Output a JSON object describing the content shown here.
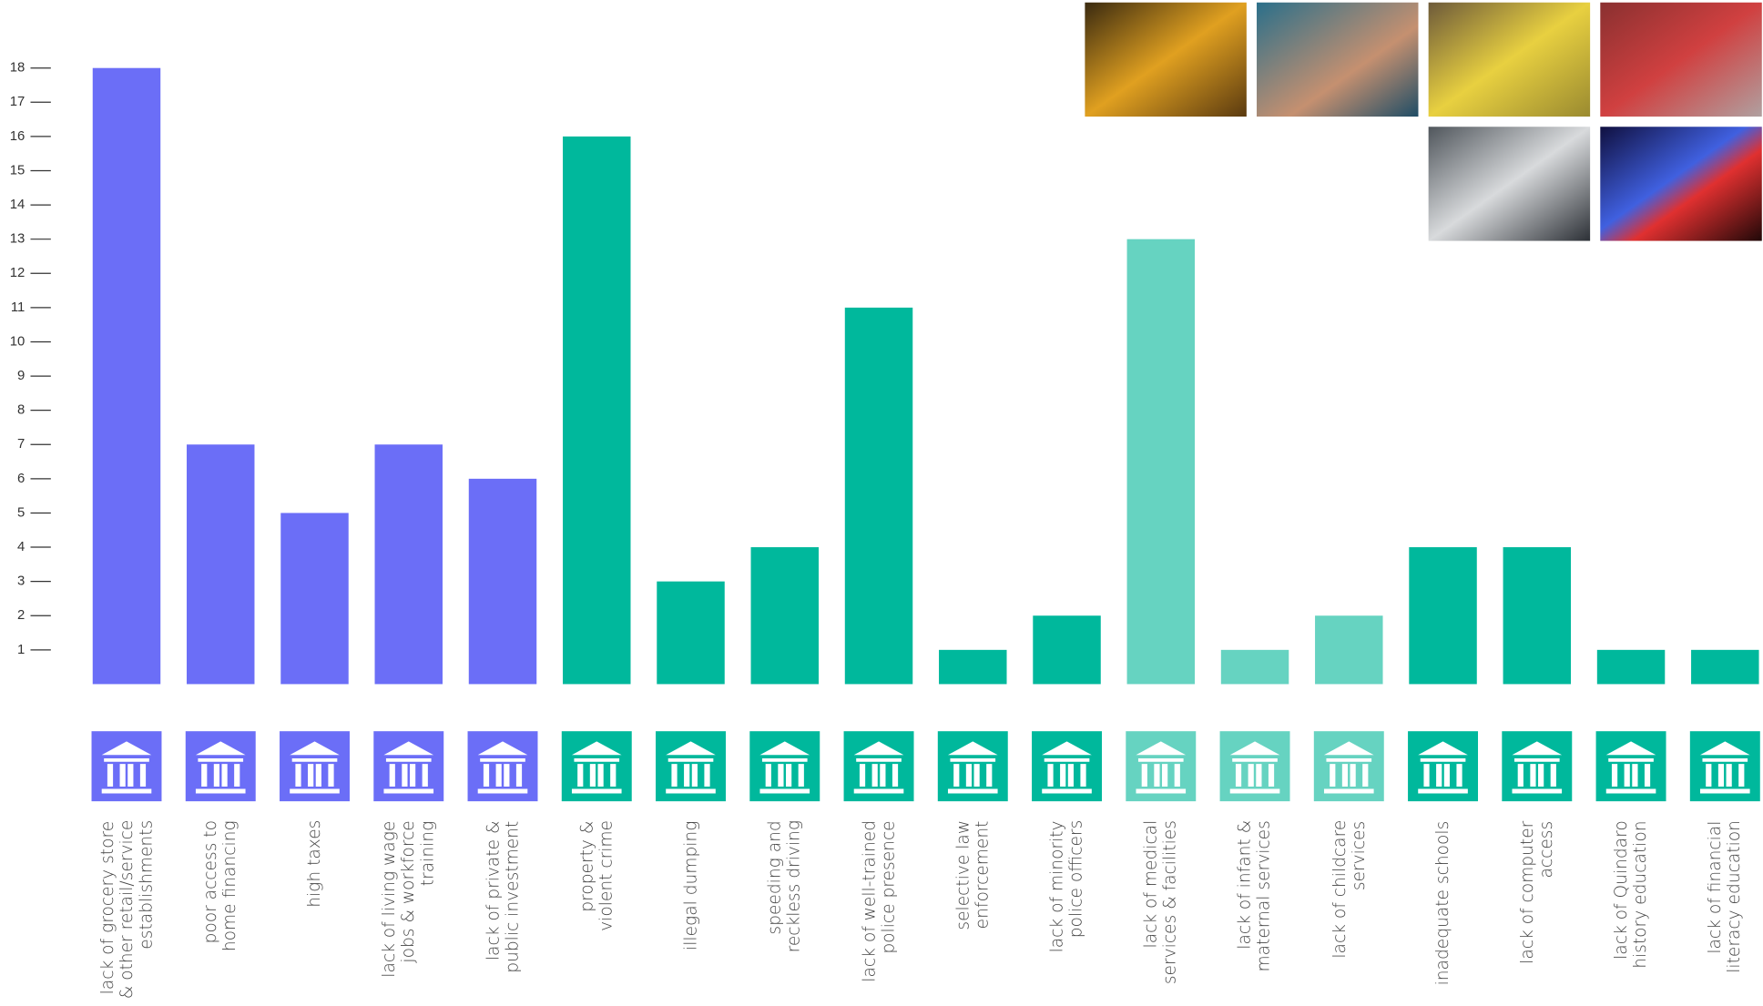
{
  "chart_data": {
    "type": "bar",
    "categories": [
      "lack of grocery store\n& other retail/service\nestablishments",
      "poor access to\nhome financing",
      "high taxes",
      "lack of living wage\njobs & workforce\ntraining",
      "lack of private &\npublic investment",
      "property &\nviolent crime",
      "illegal dumping",
      "speeding and\nreckless driving",
      "lack of well-trained\npolice presence",
      "selective law\nenforcement",
      "lack of minority\npolice officers",
      "lack of medical\nservices & facilities",
      "lack of infant &\nmaternal services",
      "lack of childcare\nservices",
      "inadequate schools",
      "lack of computer\naccess",
      "lack of Quindaro\nhistory education",
      "lack of financial\nliteracy education"
    ],
    "values": [
      18,
      7,
      5,
      7,
      6,
      16,
      3,
      4,
      11,
      1,
      2,
      13,
      1,
      2,
      4,
      4,
      1,
      1
    ],
    "colors": [
      "#6b6ef7",
      "#6b6ef7",
      "#6b6ef7",
      "#6b6ef7",
      "#6b6ef7",
      "#00b89c",
      "#00b89c",
      "#00b89c",
      "#00b89c",
      "#00b89c",
      "#00b89c",
      "#66d3c1",
      "#66d3c1",
      "#66d3c1",
      "#00b89c",
      "#00b89c",
      "#00b89c",
      "#00b89c"
    ],
    "ylim": [
      0,
      18
    ],
    "yticks": [
      1,
      2,
      3,
      4,
      5,
      6,
      7,
      8,
      9,
      10,
      11,
      12,
      13,
      14,
      15,
      16,
      17,
      18
    ]
  }
}
